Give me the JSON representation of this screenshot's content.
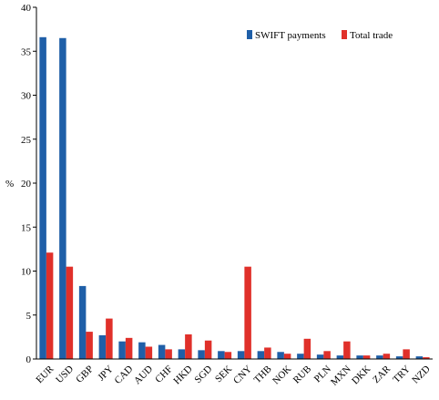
{
  "chart_data": {
    "type": "bar",
    "ylabel": "%",
    "ylim": [
      0,
      40
    ],
    "yticks": [
      0,
      5,
      10,
      15,
      20,
      25,
      30,
      35,
      40
    ],
    "grid": false,
    "legend_position": "top-right",
    "categories": [
      "EUR",
      "USD",
      "GBP",
      "JPY",
      "CAD",
      "AUD",
      "CHF",
      "HKD",
      "SGD",
      "SEK",
      "CNY",
      "THB",
      "NOK",
      "RUB",
      "PLN",
      "MXN",
      "DKK",
      "ZAR",
      "TRY",
      "NZD"
    ],
    "series": [
      {
        "name": "SWIFT payments",
        "color": "#1f5fa8",
        "values": [
          36.6,
          36.5,
          8.3,
          2.7,
          2.0,
          1.9,
          1.6,
          1.1,
          1.0,
          0.9,
          0.9,
          0.9,
          0.8,
          0.6,
          0.5,
          0.4,
          0.4,
          0.4,
          0.3,
          0.3
        ]
      },
      {
        "name": "Total trade",
        "color": "#e0302a",
        "values": [
          12.1,
          10.5,
          3.1,
          4.6,
          2.4,
          1.4,
          1.1,
          2.8,
          2.1,
          0.8,
          10.5,
          1.3,
          0.6,
          2.3,
          0.9,
          2.0,
          0.4,
          0.6,
          1.1,
          0.2
        ]
      }
    ]
  }
}
